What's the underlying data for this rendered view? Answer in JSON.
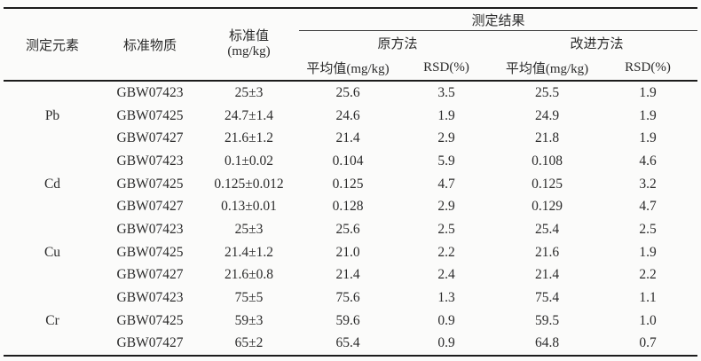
{
  "table": {
    "header": {
      "element": "测定元素",
      "material": "标准物质",
      "standard_value_line1": "标准值",
      "standard_value_line2": "(mg/kg)",
      "results_spanner": "测定结果",
      "original_method": "原方法",
      "improved_method": "改进方法",
      "mean_label_original": "平均值(mg/kg)",
      "rsd_label_original": "RSD(%)",
      "mean_label_improved": "平均值(mg/kg)",
      "rsd_label_improved": "RSD(%)"
    },
    "groups": [
      {
        "element": "Pb",
        "rows": [
          [
            "GBW07423",
            "25±3",
            "25.6",
            "3.5",
            "25.5",
            "1.9"
          ],
          [
            "GBW07425",
            "24.7±1.4",
            "24.6",
            "1.9",
            "24.9",
            "1.9"
          ],
          [
            "GBW07427",
            "21.6±1.2",
            "21.4",
            "2.9",
            "21.8",
            "1.9"
          ]
        ]
      },
      {
        "element": "Cd",
        "rows": [
          [
            "GBW07423",
            "0.1±0.02",
            "0.104",
            "5.9",
            "0.108",
            "4.6"
          ],
          [
            "GBW07425",
            "0.125±0.012",
            "0.125",
            "4.7",
            "0.125",
            "3.2"
          ],
          [
            "GBW07427",
            "0.13±0.01",
            "0.128",
            "2.9",
            "0.129",
            "4.7"
          ]
        ]
      },
      {
        "element": "Cu",
        "rows": [
          [
            "GBW07423",
            "25±3",
            "25.6",
            "2.5",
            "25.4",
            "2.5"
          ],
          [
            "GBW07425",
            "21.4±1.2",
            "21.0",
            "2.2",
            "21.6",
            "1.9"
          ],
          [
            "GBW07427",
            "21.6±0.8",
            "21.4",
            "2.4",
            "21.4",
            "2.2"
          ]
        ]
      },
      {
        "element": "Cr",
        "rows": [
          [
            "GBW07423",
            "75±5",
            "75.6",
            "1.3",
            "75.4",
            "1.1"
          ],
          [
            "GBW07425",
            "59±3",
            "59.6",
            "0.9",
            "59.5",
            "1.0"
          ],
          [
            "GBW07427",
            "65±2",
            "65.4",
            "0.9",
            "64.8",
            "0.7"
          ]
        ]
      }
    ],
    "colors": {
      "rule": "#1c1c1c",
      "text": "#2b2b2b",
      "background": "#fbfbfa"
    }
  }
}
